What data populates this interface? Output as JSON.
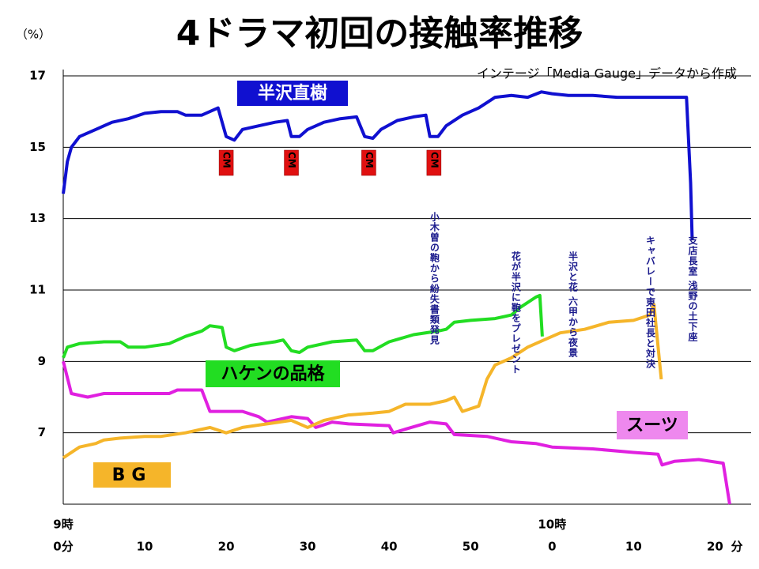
{
  "chart_data": {
    "type": "line",
    "title": "4ドラマ初回の接触率推移",
    "ylabel": "（%）",
    "source": "インテージ「Media Gauge」データから作成",
    "xlim": [
      0,
      82
    ],
    "ylim": [
      5,
      17
    ],
    "yticks": [
      7,
      9,
      11,
      13,
      15,
      17
    ],
    "xticks": [
      {
        "value": 0,
        "label": "0分"
      },
      10,
      20,
      30,
      40,
      50,
      {
        "value": 60,
        "label": "0"
      },
      {
        "value": 70,
        "label": "10"
      },
      {
        "value": 80,
        "label": "20"
      }
    ],
    "hour_labels": [
      {
        "value": 0,
        "label": "9時"
      },
      {
        "value": 60,
        "label": "10時"
      }
    ],
    "xunit": "分",
    "grid": true,
    "series": [
      {
        "name": "半沢直樹",
        "color": "#1010d0",
        "x": [
          0,
          0.5,
          1,
          2,
          4,
          6,
          8,
          10,
          12,
          14,
          15,
          17,
          19,
          20,
          21,
          22,
          24,
          26,
          27.5,
          28,
          29,
          30,
          32,
          34,
          36,
          37,
          38,
          39,
          41,
          43,
          44.5,
          45,
          46,
          47,
          49,
          51,
          53,
          55,
          57,
          58.7,
          60,
          62,
          65,
          68,
          71,
          74,
          76.5,
          77,
          77.2
        ],
        "values": [
          13.7,
          14.6,
          15.0,
          15.3,
          15.5,
          15.7,
          15.8,
          15.95,
          16.0,
          16.0,
          15.9,
          15.9,
          16.1,
          15.3,
          15.2,
          15.5,
          15.6,
          15.7,
          15.75,
          15.3,
          15.3,
          15.5,
          15.7,
          15.8,
          15.85,
          15.3,
          15.25,
          15.5,
          15.75,
          15.85,
          15.9,
          15.3,
          15.3,
          15.6,
          15.9,
          16.1,
          16.4,
          16.45,
          16.4,
          16.55,
          16.5,
          16.45,
          16.45,
          16.4,
          16.4,
          16.4,
          16.4,
          14.0,
          12.4
        ]
      },
      {
        "name": "ハケンの品格",
        "color": "#22dd22",
        "x": [
          0,
          0.5,
          2,
          5,
          7,
          8,
          10,
          13,
          15,
          17,
          18,
          19.5,
          20,
          21,
          23,
          26,
          27,
          28,
          29,
          30,
          33,
          36,
          37,
          38,
          40,
          43,
          46,
          47,
          48,
          50,
          53,
          55,
          56,
          58,
          58.5,
          58.8
        ],
        "values": [
          9.1,
          9.4,
          9.5,
          9.55,
          9.55,
          9.4,
          9.4,
          9.5,
          9.7,
          9.85,
          10.0,
          9.95,
          9.4,
          9.3,
          9.45,
          9.55,
          9.6,
          9.3,
          9.25,
          9.4,
          9.55,
          9.6,
          9.3,
          9.3,
          9.55,
          9.75,
          9.85,
          9.9,
          10.1,
          10.15,
          10.2,
          10.3,
          10.5,
          10.8,
          10.85,
          9.7
        ]
      },
      {
        "name": "スーツ",
        "color": "#e020e0",
        "x": [
          0,
          1,
          3,
          5,
          10,
          13,
          14,
          17,
          18,
          20,
          22,
          24,
          25,
          28,
          30,
          31,
          33,
          35,
          40,
          40.5,
          42,
          45,
          47,
          48,
          52,
          55,
          58,
          60,
          65,
          70,
          73,
          73.5,
          75,
          78,
          81,
          81.8
        ],
        "values": [
          9.0,
          8.1,
          8.0,
          8.1,
          8.1,
          8.1,
          8.2,
          8.2,
          7.6,
          7.6,
          7.6,
          7.45,
          7.3,
          7.45,
          7.4,
          7.15,
          7.3,
          7.25,
          7.2,
          7.0,
          7.1,
          7.3,
          7.25,
          6.95,
          6.9,
          6.75,
          6.7,
          6.6,
          6.55,
          6.45,
          6.4,
          6.1,
          6.2,
          6.25,
          6.15,
          5.0
        ]
      },
      {
        "name": "BG",
        "color": "#f5b52a",
        "x": [
          0,
          2,
          4,
          5,
          7,
          10,
          12,
          15,
          18,
          20,
          22,
          25,
          28,
          30,
          32,
          35,
          38,
          40,
          42,
          45,
          47,
          48,
          49,
          51,
          52,
          53,
          55,
          57,
          59,
          61,
          64,
          67,
          70,
          72,
          72.5,
          73.4
        ],
        "values": [
          6.3,
          6.6,
          6.7,
          6.8,
          6.85,
          6.9,
          6.9,
          7.0,
          7.15,
          7.0,
          7.15,
          7.25,
          7.35,
          7.15,
          7.35,
          7.5,
          7.55,
          7.6,
          7.8,
          7.8,
          7.9,
          8.0,
          7.6,
          7.75,
          8.5,
          8.9,
          9.1,
          9.4,
          9.6,
          9.8,
          9.9,
          10.1,
          10.15,
          10.3,
          10.6,
          8.5
        ]
      }
    ],
    "cm_marks": [
      {
        "x": 20,
        "label": "CM"
      },
      {
        "x": 28,
        "label": "CM"
      },
      {
        "x": 37.5,
        "label": "CM"
      },
      {
        "x": 45.5,
        "label": "CM"
      }
    ],
    "annotations": [
      {
        "x": 45.5,
        "text": "小木曽の鞄から紛失書類発見"
      },
      {
        "x": 55.5,
        "text": "花が半沢に鞄をプレゼント"
      },
      {
        "x": 62.5,
        "text": "半沢と花 六甲から夜景"
      },
      {
        "x": 72,
        "text": "キャバレーで東田社長と対決"
      },
      {
        "x": 77.2,
        "text": "支店長室 浅野の土下座"
      }
    ]
  }
}
